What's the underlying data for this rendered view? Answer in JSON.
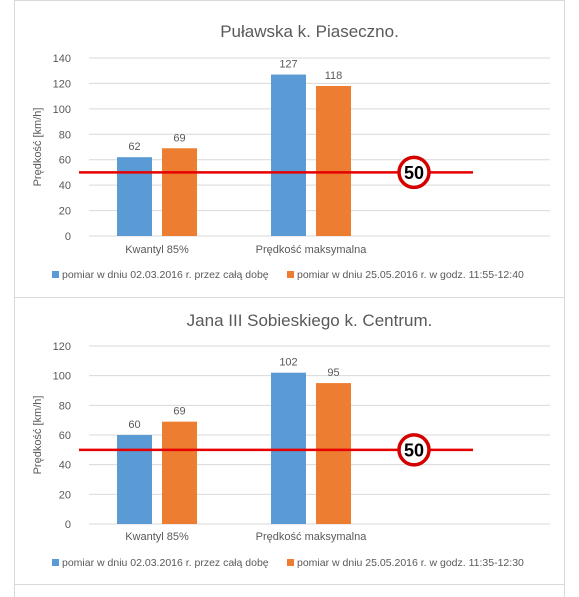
{
  "colors": {
    "series1": "#5b9bd5",
    "series2": "#ed7d31",
    "limit_line": "#e60000",
    "grid": "#d9d9d9",
    "text": "#595959"
  },
  "limit_sign_icon": "speed-limit-sign-icon",
  "chart_data": [
    {
      "type": "bar",
      "title": "Puławska k. Piaseczno.",
      "ylabel": "Prędkość [km/h]",
      "ylim": [
        0,
        140
      ],
      "yticks": [
        0,
        20,
        40,
        60,
        80,
        100,
        120,
        140
      ],
      "categories": [
        "Kwantyl 85%",
        "Prędkość maksymalna"
      ],
      "series": [
        {
          "name": "pomiar w dniu 02.03.2016 r. przez całą dobę",
          "values": [
            62,
            127
          ]
        },
        {
          "name": "pomiar w dniu 25.05.2016 r. w godz. 11:55-12:40",
          "values": [
            69,
            118
          ]
        }
      ],
      "speed_limit": 50,
      "speed_limit_label": "50",
      "legend_position": "bottom",
      "grid": true
    },
    {
      "type": "bar",
      "title": "Jana III Sobieskiego k. Centrum.",
      "ylabel": "Prędkość [km/h]",
      "ylim": [
        0,
        120
      ],
      "yticks": [
        0,
        20,
        40,
        60,
        80,
        100,
        120
      ],
      "categories": [
        "Kwantyl 85%",
        "Prędkość maksymalna"
      ],
      "series": [
        {
          "name": "pomiar w dniu 02.03.2016 r. przez całą dobę",
          "values": [
            60,
            102
          ]
        },
        {
          "name": "pomiar w dniu 25.05.2016 r. w godz. 11:35-12:30",
          "values": [
            69,
            95
          ]
        }
      ],
      "speed_limit": 50,
      "speed_limit_label": "50",
      "legend_position": "bottom",
      "grid": true
    }
  ]
}
